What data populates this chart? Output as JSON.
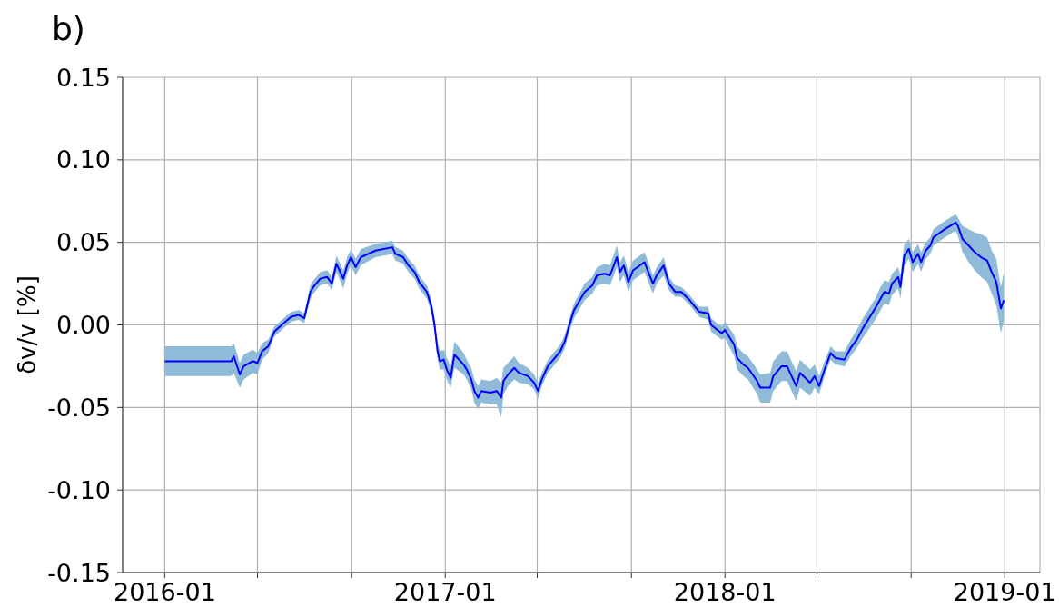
{
  "chart_data": {
    "type": "line",
    "title": "b)",
    "ylabel": "δv/v [%]",
    "x": [
      "2016-01-01",
      "2016-03-28",
      "2016-03-31",
      "2016-04-08",
      "2016-04-13",
      "2016-04-25",
      "2016-05-01",
      "2016-05-07",
      "2016-05-15",
      "2016-05-23",
      "2016-06-04",
      "2016-06-14",
      "2016-06-24",
      "2016-07-01",
      "2016-07-09",
      "2016-07-13",
      "2016-07-22",
      "2016-07-31",
      "2016-08-06",
      "2016-08-12",
      "2016-08-21",
      "2016-08-26",
      "2016-08-31",
      "2016-09-06",
      "2016-09-13",
      "2016-10-02",
      "2016-10-24",
      "2016-10-28",
      "2016-11-07",
      "2016-11-14",
      "2016-11-22",
      "2016-11-28",
      "2016-12-08",
      "2016-12-14",
      "2016-12-18",
      "2016-12-22",
      "2016-12-25",
      "2016-12-30",
      "2017-01-03",
      "2017-01-08",
      "2017-01-13",
      "2017-01-25",
      "2017-01-29",
      "2017-02-04",
      "2017-02-08",
      "2017-02-13",
      "2017-02-17",
      "2017-03-01",
      "2017-03-09",
      "2017-03-15",
      "2017-03-18",
      "2017-03-24",
      "2017-04-01",
      "2017-04-07",
      "2017-04-19",
      "2017-04-27",
      "2017-05-02",
      "2017-05-07",
      "2017-05-15",
      "2017-05-31",
      "2017-06-06",
      "2017-06-12",
      "2017-06-18",
      "2017-07-02",
      "2017-07-12",
      "2017-07-18",
      "2017-07-28",
      "2017-08-04",
      "2017-08-13",
      "2017-08-17",
      "2017-08-22",
      "2017-08-28",
      "2017-09-03",
      "2017-09-18",
      "2017-09-23",
      "2017-09-29",
      "2017-10-04",
      "2017-10-13",
      "2017-10-20",
      "2017-10-28",
      "2017-11-05",
      "2017-11-16",
      "2017-11-28",
      "2017-12-10",
      "2017-12-14",
      "2017-12-22",
      "2017-12-28",
      "2018-01-01",
      "2018-01-13",
      "2018-01-17",
      "2018-01-25",
      "2018-01-31",
      "2018-02-12",
      "2018-02-16",
      "2018-03-01",
      "2018-03-05",
      "2018-03-16",
      "2018-03-23",
      "2018-03-29",
      "2018-04-04",
      "2018-04-09",
      "2018-04-22",
      "2018-04-28",
      "2018-05-04",
      "2018-05-11",
      "2018-05-19",
      "2018-05-25",
      "2018-06-06",
      "2018-06-14",
      "2018-06-22",
      "2018-06-30",
      "2018-07-16",
      "2018-07-22",
      "2018-07-28",
      "2018-08-03",
      "2018-08-07",
      "2018-08-15",
      "2018-08-18",
      "2018-08-23",
      "2018-08-29",
      "2018-09-03",
      "2018-09-10",
      "2018-09-14",
      "2018-09-20",
      "2018-09-26",
      "2018-09-30",
      "2018-10-15",
      "2018-10-29",
      "2018-11-01",
      "2018-11-07",
      "2018-11-15",
      "2018-11-23",
      "2018-12-01",
      "2018-12-09",
      "2018-12-15",
      "2018-12-21",
      "2018-12-27",
      "2018-12-31"
    ],
    "series": [
      {
        "color": "#0000ff",
        "values": [
          -0.022,
          -0.022,
          -0.019,
          -0.03,
          -0.025,
          -0.022,
          -0.023,
          -0.016,
          -0.013,
          -0.004,
          0.001,
          0.005,
          0.006,
          0.004,
          0.02,
          0.023,
          0.028,
          0.029,
          0.025,
          0.037,
          0.028,
          0.036,
          0.041,
          0.035,
          0.041,
          0.045,
          0.047,
          0.043,
          0.041,
          0.036,
          0.032,
          0.026,
          0.02,
          0.011,
          0.0,
          -0.016,
          -0.022,
          -0.021,
          -0.027,
          -0.032,
          -0.018,
          -0.024,
          -0.027,
          -0.033,
          -0.04,
          -0.044,
          -0.04,
          -0.041,
          -0.04,
          -0.044,
          -0.034,
          -0.03,
          -0.026,
          -0.029,
          -0.031,
          -0.035,
          -0.04,
          -0.033,
          -0.025,
          -0.016,
          -0.01,
          0.0,
          0.009,
          0.02,
          0.024,
          0.03,
          0.031,
          0.03,
          0.041,
          0.032,
          0.036,
          0.026,
          0.033,
          0.038,
          0.032,
          0.025,
          0.03,
          0.036,
          0.025,
          0.02,
          0.02,
          0.015,
          0.008,
          0.007,
          0.0,
          -0.003,
          -0.005,
          -0.003,
          -0.012,
          -0.02,
          -0.024,
          -0.026,
          -0.034,
          -0.038,
          -0.038,
          -0.031,
          -0.025,
          -0.025,
          -0.031,
          -0.037,
          -0.029,
          -0.035,
          -0.031,
          -0.037,
          -0.027,
          -0.017,
          -0.02,
          -0.021,
          -0.014,
          -0.009,
          -0.002,
          0.01,
          0.015,
          0.02,
          0.019,
          0.025,
          0.029,
          0.023,
          0.042,
          0.046,
          0.038,
          0.043,
          0.038,
          0.045,
          0.048,
          0.053,
          0.058,
          0.062,
          0.06,
          0.052,
          0.048,
          0.044,
          0.041,
          0.039,
          0.032,
          0.026,
          0.01,
          0.015
        ],
        "lower": [
          -0.031,
          -0.031,
          -0.029,
          -0.038,
          -0.033,
          -0.029,
          -0.03,
          -0.021,
          -0.017,
          -0.007,
          -0.002,
          0.002,
          0.003,
          0.001,
          0.016,
          0.019,
          0.024,
          0.025,
          0.021,
          0.032,
          0.022,
          0.031,
          0.036,
          0.03,
          0.036,
          0.041,
          0.043,
          0.039,
          0.037,
          0.032,
          0.028,
          0.022,
          0.016,
          0.007,
          -0.004,
          -0.021,
          -0.027,
          -0.027,
          -0.033,
          -0.038,
          -0.026,
          -0.03,
          -0.033,
          -0.039,
          -0.047,
          -0.051,
          -0.047,
          -0.048,
          -0.048,
          -0.056,
          -0.042,
          -0.037,
          -0.033,
          -0.035,
          -0.036,
          -0.039,
          -0.045,
          -0.037,
          -0.029,
          -0.02,
          -0.014,
          -0.004,
          0.004,
          0.015,
          0.019,
          0.024,
          0.025,
          0.024,
          0.035,
          0.026,
          0.03,
          0.02,
          0.027,
          0.032,
          0.026,
          0.019,
          0.025,
          0.03,
          0.021,
          0.017,
          0.017,
          0.012,
          0.005,
          0.003,
          -0.004,
          -0.007,
          -0.009,
          -0.008,
          -0.019,
          -0.027,
          -0.031,
          -0.033,
          -0.042,
          -0.047,
          -0.047,
          -0.04,
          -0.034,
          -0.034,
          -0.04,
          -0.046,
          -0.038,
          -0.043,
          -0.038,
          -0.042,
          -0.031,
          -0.021,
          -0.024,
          -0.025,
          -0.019,
          -0.014,
          -0.008,
          0.003,
          0.008,
          0.013,
          0.012,
          0.018,
          0.022,
          0.016,
          0.036,
          0.04,
          0.032,
          0.037,
          0.032,
          0.04,
          0.043,
          0.048,
          0.053,
          0.057,
          0.054,
          0.044,
          0.038,
          0.033,
          0.029,
          0.026,
          0.019,
          0.012,
          -0.005,
          0.003
        ],
        "upper": [
          -0.013,
          -0.013,
          -0.011,
          -0.023,
          -0.018,
          -0.015,
          -0.017,
          -0.011,
          -0.009,
          -0.001,
          0.004,
          0.008,
          0.009,
          0.007,
          0.024,
          0.027,
          0.032,
          0.033,
          0.029,
          0.042,
          0.033,
          0.041,
          0.046,
          0.04,
          0.046,
          0.049,
          0.051,
          0.047,
          0.045,
          0.04,
          0.036,
          0.03,
          0.024,
          0.015,
          0.004,
          -0.011,
          -0.016,
          -0.015,
          -0.02,
          -0.025,
          -0.01,
          -0.017,
          -0.021,
          -0.026,
          -0.033,
          -0.037,
          -0.033,
          -0.034,
          -0.032,
          -0.035,
          -0.026,
          -0.023,
          -0.019,
          -0.023,
          -0.026,
          -0.03,
          -0.035,
          -0.029,
          -0.021,
          -0.012,
          -0.006,
          0.004,
          0.013,
          0.025,
          0.029,
          0.035,
          0.037,
          0.036,
          0.048,
          0.038,
          0.042,
          0.032,
          0.039,
          0.044,
          0.038,
          0.03,
          0.035,
          0.041,
          0.029,
          0.024,
          0.023,
          0.018,
          0.011,
          0.011,
          0.004,
          0.001,
          -0.001,
          0.002,
          -0.006,
          -0.013,
          -0.017,
          -0.019,
          -0.027,
          -0.03,
          -0.029,
          -0.022,
          -0.016,
          -0.016,
          -0.022,
          -0.028,
          -0.021,
          -0.027,
          -0.024,
          -0.031,
          -0.022,
          -0.013,
          -0.016,
          -0.016,
          -0.009,
          -0.003,
          0.004,
          0.016,
          0.022,
          0.027,
          0.026,
          0.031,
          0.035,
          0.03,
          0.049,
          0.052,
          0.044,
          0.049,
          0.044,
          0.05,
          0.053,
          0.058,
          0.063,
          0.067,
          0.065,
          0.06,
          0.058,
          0.056,
          0.055,
          0.053,
          0.045,
          0.04,
          0.023,
          0.032
        ]
      }
    ],
    "xlim": [
      "2015-11-07",
      "2019-02-16"
    ],
    "xticks": [
      "2016-01",
      {
        "value": "2016-05",
        "label": null
      },
      {
        "value": "2016-09",
        "label": null
      },
      "2017-01",
      {
        "value": "2017-05",
        "label": null
      },
      {
        "value": "2017-09",
        "label": null
      },
      "2018-01",
      {
        "value": "2018-05",
        "label": null
      },
      {
        "value": "2018-09",
        "label": null
      },
      "2019-01"
    ],
    "ylim": [
      -0.15,
      0.15
    ],
    "yticks": [
      -0.15,
      {
        "value": -0.1,
        "label": "-0.10"
      },
      -0.05,
      {
        "value": 0,
        "label": "0.00"
      },
      0.05,
      {
        "value": 0.1,
        "label": "0.10"
      },
      0.15
    ],
    "grid": true
  }
}
